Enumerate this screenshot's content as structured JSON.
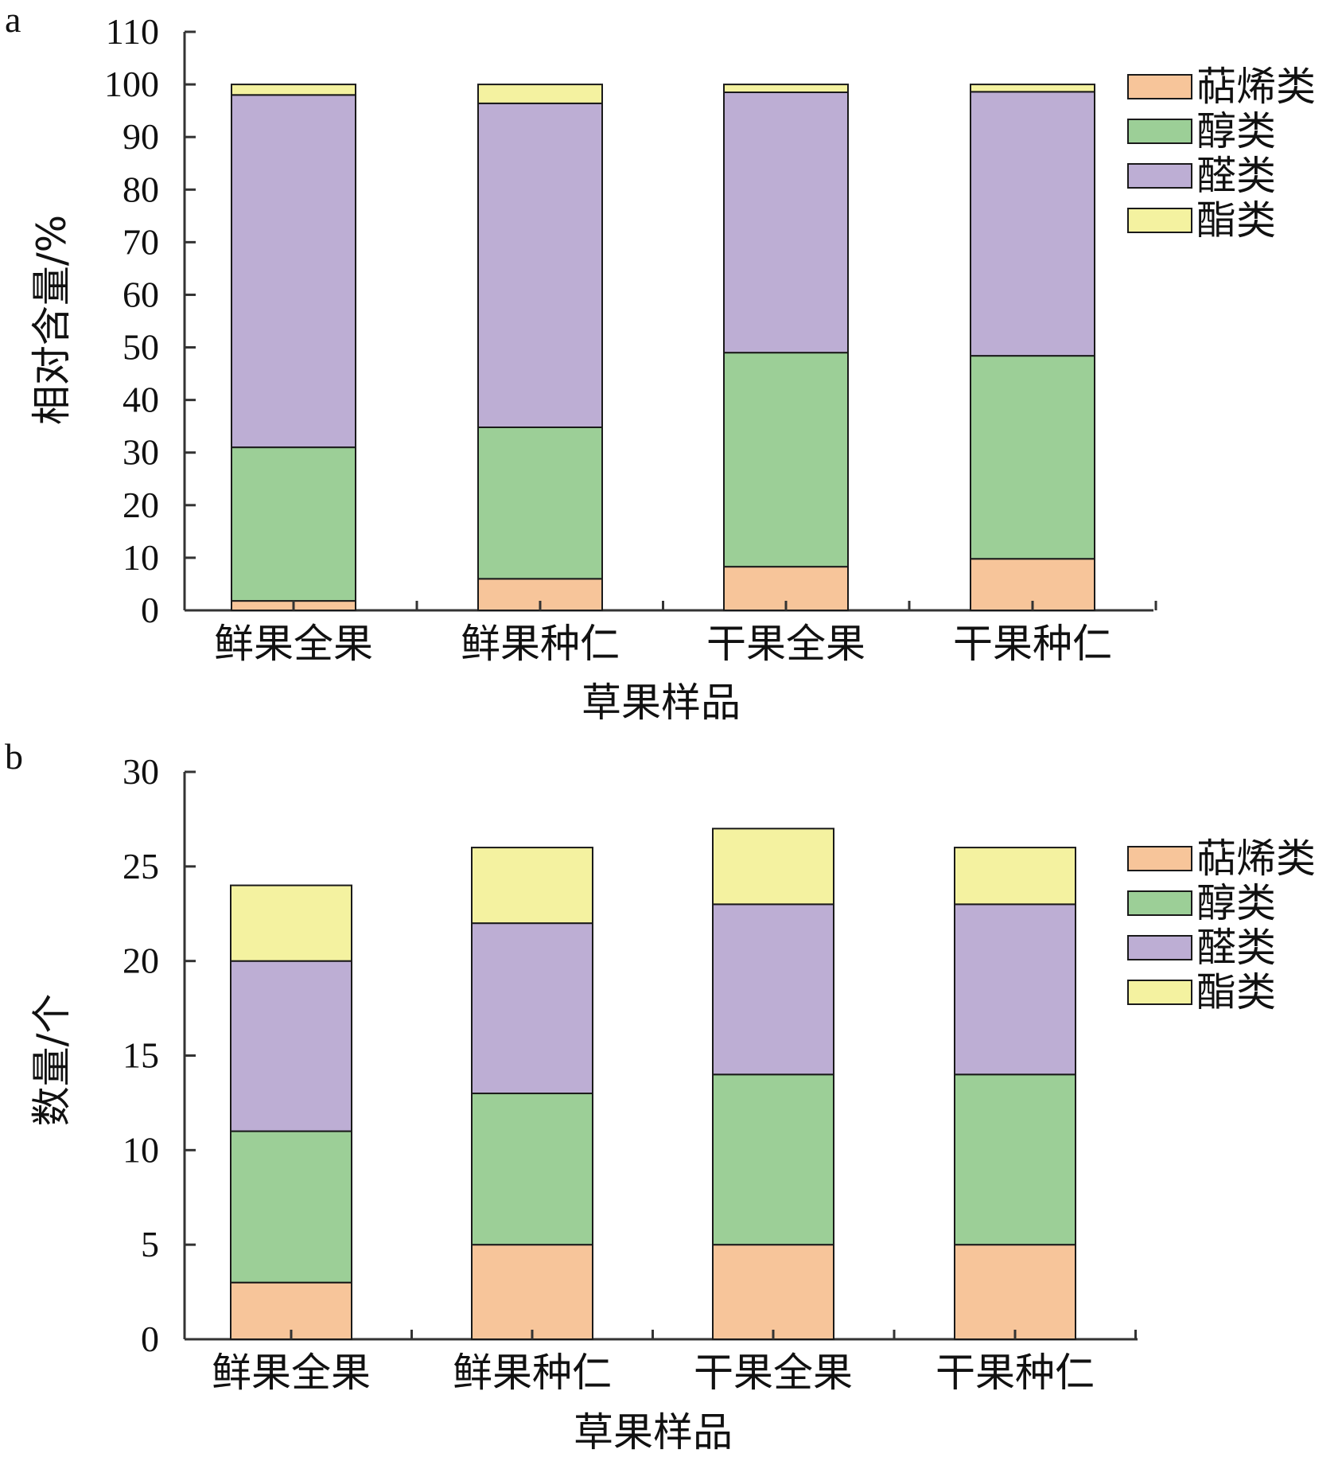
{
  "colors": {
    "terpenes": "#f7c59a",
    "alcohols": "#9ccf97",
    "aldehydes": "#bdaed4",
    "esters": "#f4f2a0",
    "axis": "#333333",
    "bar_stroke": "#1a1a1a"
  },
  "chart_data": [
    {
      "panel": "a",
      "type": "bar",
      "stacked": true,
      "xlabel": "草果样品",
      "ylabel": "相对含量/%",
      "ylim": [
        0,
        110
      ],
      "yticks": [
        0,
        10,
        20,
        30,
        40,
        50,
        60,
        70,
        80,
        90,
        100,
        110
      ],
      "categories": [
        "鲜果全果",
        "鲜果种仁",
        "干果全果",
        "干果种仁"
      ],
      "series": [
        {
          "name": "萜烯类",
          "color": "#f7c59a",
          "values": [
            1.8,
            6.0,
            8.3,
            9.8
          ]
        },
        {
          "name": "醇类",
          "color": "#9ccf97",
          "values": [
            29.2,
            28.8,
            40.7,
            38.6
          ]
        },
        {
          "name": "醛类",
          "color": "#bdaed4",
          "values": [
            67.0,
            61.6,
            49.5,
            50.2
          ]
        },
        {
          "name": "酯类",
          "color": "#f4f2a0",
          "values": [
            2.0,
            3.6,
            1.5,
            1.4
          ]
        }
      ],
      "legend": {
        "position": "top-right",
        "entries": [
          "萜烯类",
          "醇类",
          "醛类",
          "酯类"
        ]
      }
    },
    {
      "panel": "b",
      "type": "bar",
      "stacked": true,
      "xlabel": "草果样品",
      "ylabel": "数量/个",
      "ylim": [
        0,
        30
      ],
      "yticks": [
        0,
        5,
        10,
        15,
        20,
        25,
        30
      ],
      "categories": [
        "鲜果全果",
        "鲜果种仁",
        "干果全果",
        "干果种仁"
      ],
      "series": [
        {
          "name": "萜烯类",
          "color": "#f7c59a",
          "values": [
            3,
            5,
            5,
            5
          ]
        },
        {
          "name": "醇类",
          "color": "#9ccf97",
          "values": [
            8,
            8,
            9,
            9
          ]
        },
        {
          "name": "醛类",
          "color": "#bdaed4",
          "values": [
            9,
            9,
            9,
            9
          ]
        },
        {
          "name": "酯类",
          "color": "#f4f2a0",
          "values": [
            4,
            4,
            4,
            3
          ]
        }
      ],
      "legend": {
        "position": "top-right",
        "entries": [
          "萜烯类",
          "醇类",
          "醛类",
          "酯类"
        ]
      }
    }
  ]
}
